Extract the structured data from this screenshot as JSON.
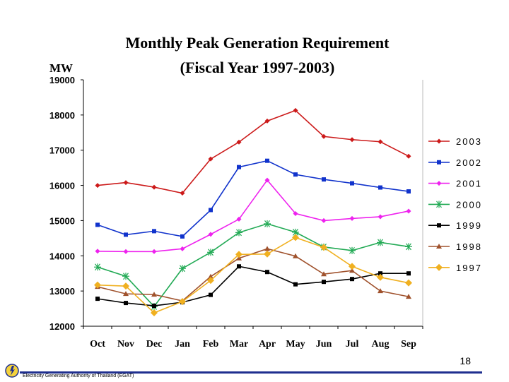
{
  "slide": {
    "page_number": "18",
    "organization": "Electricity Generating Authority of Thailand (EGAT)",
    "footer_line_color": "#1f2f8f"
  },
  "chart_data": {
    "type": "line",
    "title_line1": "Monthly  Peak  Generation  Requirement",
    "title_line2": "(Fiscal Year 1997-2003)",
    "ylabel": "MW",
    "xlabel": "",
    "ylim": [
      12000,
      19000
    ],
    "yticks": [
      12000,
      13000,
      14000,
      15000,
      16000,
      17000,
      18000,
      19000
    ],
    "ytick_labels": [
      "12000",
      "13000",
      "14000",
      "15000",
      "16000",
      "17000",
      "18000",
      "19000"
    ],
    "categories": [
      "Oct",
      "Nov",
      "Dec",
      "Jan",
      "Feb",
      "Mar",
      "Apr",
      "May",
      "Jun",
      "Jul",
      "Aug",
      "Sep"
    ],
    "grid": false,
    "legend_position": "right",
    "series": [
      {
        "name": "2003",
        "color": "#cc1a1a",
        "marker": "diamond-small",
        "values": [
          16000,
          16080,
          15950,
          15780,
          16750,
          17230,
          17830,
          18130,
          17390,
          17300,
          17240,
          16830
        ]
      },
      {
        "name": "2002",
        "color": "#1133cc",
        "marker": "square",
        "values": [
          14880,
          14600,
          14700,
          14550,
          15300,
          16520,
          16700,
          16310,
          16170,
          16060,
          15940,
          15830
        ]
      },
      {
        "name": "2001",
        "color": "#ee22ee",
        "marker": "diamond-small",
        "values": [
          14130,
          14120,
          14120,
          14200,
          14610,
          15040,
          16150,
          15200,
          15000,
          15060,
          15110,
          15270
        ]
      },
      {
        "name": "2000",
        "color": "#22aa55",
        "marker": "asterisk",
        "values": [
          13680,
          13420,
          12560,
          13640,
          14100,
          14660,
          14910,
          14670,
          14250,
          14150,
          14380,
          14260
        ]
      },
      {
        "name": "1999",
        "color": "#000000",
        "marker": "square",
        "values": [
          12780,
          12660,
          12580,
          12680,
          12890,
          13700,
          13540,
          13190,
          13260,
          13340,
          13500,
          13500
        ]
      },
      {
        "name": "1998",
        "color": "#a0522d",
        "marker": "triangle",
        "values": [
          13120,
          12920,
          12900,
          12720,
          13410,
          13930,
          14200,
          13990,
          13480,
          13580,
          13000,
          12840
        ]
      },
      {
        "name": "1997",
        "color": "#f0b020",
        "marker": "diamond",
        "values": [
          13170,
          13140,
          12380,
          12700,
          13300,
          14040,
          14050,
          14520,
          14240,
          13700,
          13390,
          13230
        ]
      }
    ]
  }
}
